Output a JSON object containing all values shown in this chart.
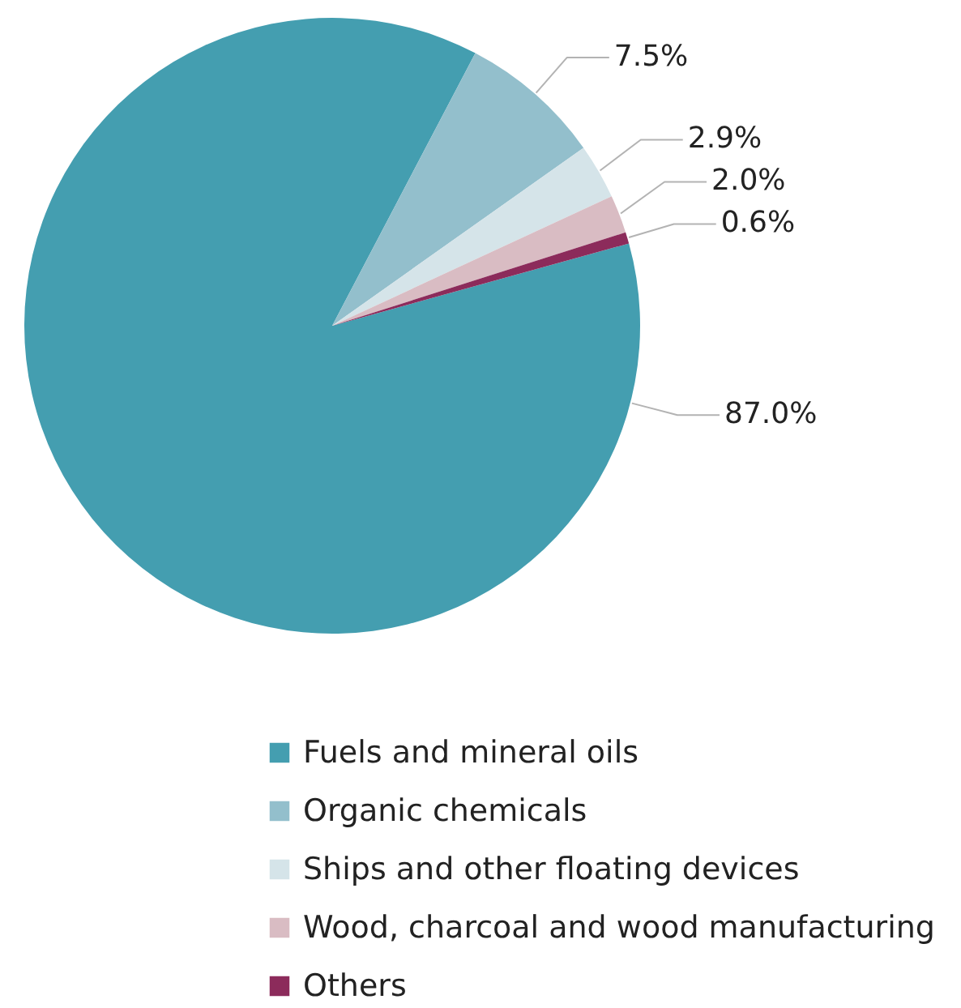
{
  "chart_data": {
    "type": "pie",
    "categories": [
      "Fuels and mineral oils",
      "Organic chemicals",
      "Ships and other floating devices",
      "Wood, charcoal and wood manufacturing",
      "Others"
    ],
    "values": [
      87.0,
      7.5,
      2.9,
      2.0,
      0.6
    ],
    "colors": [
      "#449eb0",
      "#93bfcc",
      "#d5e4e9",
      "#d9bcc3",
      "#8c2b5b"
    ],
    "value_labels": [
      "87.0%",
      "7.5%",
      "2.9%",
      "2.0%",
      "0.6%"
    ],
    "legend": "bottom"
  }
}
